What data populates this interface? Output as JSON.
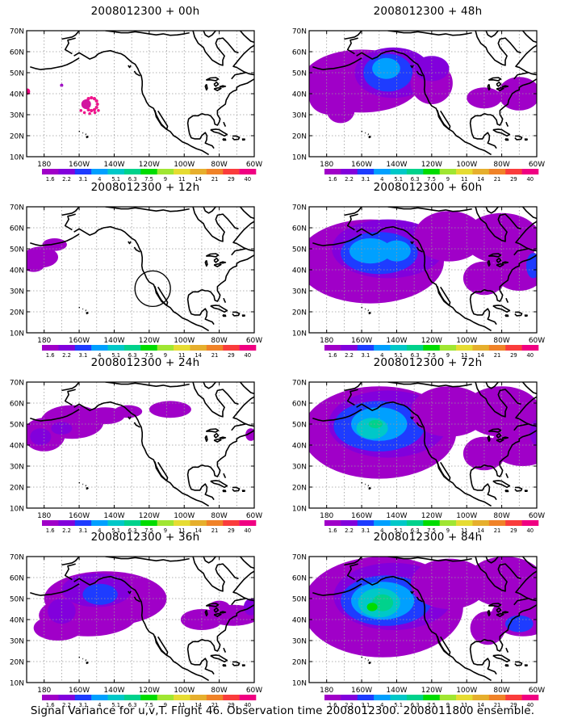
{
  "panels": [
    {
      "title": "2008012300 + 00h",
      "lead": "00h"
    },
    {
      "title": "2008012300 + 48h",
      "lead": "48h"
    },
    {
      "title": "2008012300 + 12h",
      "lead": "12h"
    },
    {
      "title": "2008012300 + 60h",
      "lead": "60h"
    },
    {
      "title": "2008012300 + 24h",
      "lead": "24h"
    },
    {
      "title": "2008012300 + 72h",
      "lead": "72h"
    },
    {
      "title": "2008012300 + 36h",
      "lead": "36h"
    },
    {
      "title": "2008012300 + 84h",
      "lead": "84h"
    }
  ],
  "axes": {
    "lat_labels": [
      "70N",
      "60N",
      "50N",
      "40N",
      "30N",
      "20N",
      "10N"
    ],
    "lon_labels": [
      "180",
      "160W",
      "140W",
      "120W",
      "100W",
      "80W",
      "60W"
    ]
  },
  "colorbar": {
    "labels": [
      "1.6",
      "2.2",
      "3.1",
      "4",
      "5.1",
      "6.3",
      "7.5",
      "9",
      "11",
      "14",
      "21",
      "29",
      "40"
    ],
    "colors": [
      "#a000c8",
      "#8200dc",
      "#1e3cff",
      "#00a0ff",
      "#00c8c8",
      "#00d28c",
      "#00dc00",
      "#a0e632",
      "#e6dc32",
      "#e6af2d",
      "#f08228",
      "#fa3c3c",
      "#f00082"
    ]
  },
  "footer": "Signal Variance for u,v,T. Flight 46. Observation time 2008012300. 2008011800 ensemble."
}
